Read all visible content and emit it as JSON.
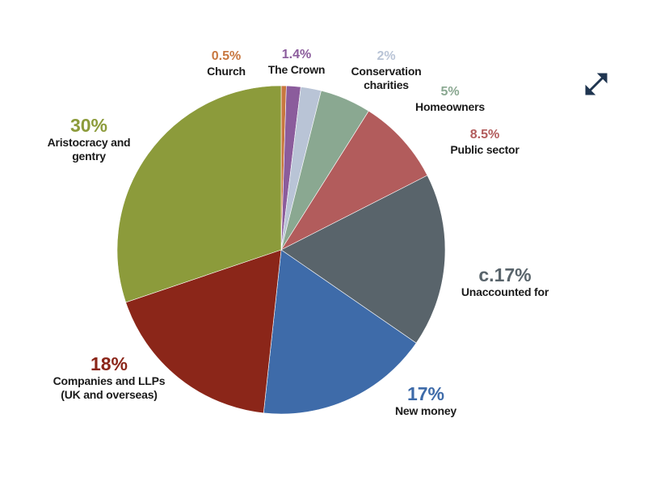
{
  "chart_data": {
    "type": "pie",
    "categories": [
      "Church",
      "The Crown",
      "Conservation charities",
      "Homeowners",
      "Public sector",
      "Unaccounted for",
      "New money",
      "Companies and LLPs (UK and overseas)",
      "Aristocracy and gentry"
    ],
    "values": [
      0.5,
      1.4,
      2,
      5,
      8.5,
      17,
      17,
      18,
      30
    ],
    "value_labels": [
      "0.5%",
      "1.4%",
      "2%",
      "5%",
      "8.5%",
      "c.17%",
      "17%",
      "18%",
      "30%"
    ],
    "colors": [
      "#c8773f",
      "#8b5c9c",
      "#b9c4d6",
      "#8aa891",
      "#b25c5c",
      "#59646b",
      "#3e6ba9",
      "#8b2619",
      "#8c9b3b"
    ]
  }
}
